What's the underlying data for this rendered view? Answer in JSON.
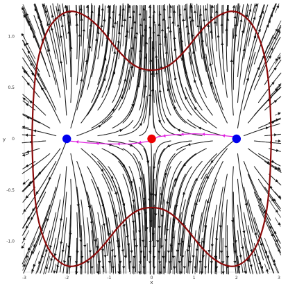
{
  "chart_data": {
    "type": "streamplot",
    "xlabel": "x",
    "ylabel": "y",
    "xlim": [
      -3,
      3
    ],
    "ylim": [
      -1.3,
      1.3
    ],
    "x_ticks": [
      -3,
      -2,
      -1,
      0,
      1,
      2,
      3
    ],
    "y_ticks": [
      -1.0,
      -0.5,
      0,
      0.5,
      1.0
    ],
    "x_tick_labels": [
      "-3",
      "-2",
      "-1",
      "0",
      "1",
      "2",
      "3"
    ],
    "y_tick_labels": [
      "-1.0",
      "-0.5",
      "0",
      "0.5",
      "1.0"
    ],
    "grid": false,
    "boundary_curve": {
      "color": "#8b0a0a",
      "x": [
        -2.82,
        -2.78,
        -2.65,
        -2.4,
        -2.0,
        -1.6,
        -1.2,
        -0.8,
        -0.4,
        0,
        0.4,
        0.8,
        1.2,
        1.6,
        2.0,
        2.4,
        2.65,
        2.78,
        2.82
      ],
      "y_upper": [
        0,
        0.5,
        0.86,
        1.12,
        1.26,
        1.22,
        1.08,
        0.86,
        0.7,
        0.66,
        0.7,
        0.86,
        1.08,
        1.22,
        1.26,
        1.12,
        0.86,
        0.5,
        0
      ]
    },
    "points": [
      {
        "x": -2.0,
        "y": 0.0,
        "color": "#0000ee"
      },
      {
        "x": 0.0,
        "y": 0.0,
        "color": "#ee0000"
      },
      {
        "x": 2.0,
        "y": 0.0,
        "color": "#0000ee"
      }
    ],
    "trajectory": {
      "color": "#e020e0",
      "x": [
        1.95,
        1.5,
        1.0,
        0.5,
        0.15,
        0.0,
        -0.5,
        -1.0,
        -1.5,
        -1.95
      ],
      "y": [
        0.02,
        0.04,
        0.05,
        0.04,
        0.02,
        -0.02,
        -0.05,
        -0.05,
        -0.04,
        -0.02
      ]
    }
  }
}
